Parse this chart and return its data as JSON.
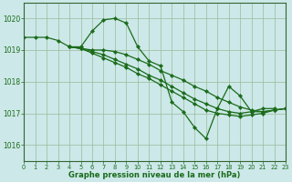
{
  "background_color": "#cce8e8",
  "grid_color": "#99bb99",
  "line_color": "#1a6b1a",
  "marker_color": "#1a6b1a",
  "title": "Graphe pression niveau de la mer (hPa)",
  "xlim": [
    0,
    23
  ],
  "ylim": [
    1015.5,
    1020.5
  ],
  "yticks": [
    1016,
    1017,
    1018,
    1019,
    1020
  ],
  "xticks": [
    0,
    1,
    2,
    3,
    4,
    5,
    6,
    7,
    8,
    9,
    10,
    11,
    12,
    13,
    14,
    15,
    16,
    17,
    18,
    19,
    20,
    21,
    22,
    23
  ],
  "series": [
    {
      "x": [
        0,
        1,
        2,
        3,
        4,
        5,
        6,
        7,
        8,
        9,
        10,
        11,
        12,
        13,
        14,
        15,
        16,
        17,
        18,
        19,
        20,
        21,
        22
      ],
      "y": [
        1019.4,
        1019.4,
        1019.4,
        1019.3,
        1019.1,
        1019.1,
        1019.6,
        1019.95,
        1020.0,
        1019.85,
        1019.1,
        1018.65,
        1018.5,
        1017.35,
        1017.05,
        1016.55,
        1016.2,
        1017.15,
        1017.85,
        1017.55,
        1017.05,
        1017.15,
        1017.15
      ]
    },
    {
      "x": [
        4,
        5,
        6,
        7,
        8,
        9,
        10,
        11,
        12,
        13,
        14,
        15,
        16,
        17,
        18,
        19,
        20,
        21,
        22,
        23
      ],
      "y": [
        1019.1,
        1019.05,
        1019.0,
        1019.0,
        1018.95,
        1018.85,
        1018.7,
        1018.55,
        1018.35,
        1018.2,
        1018.05,
        1017.85,
        1017.7,
        1017.5,
        1017.35,
        1017.2,
        1017.1,
        1017.05,
        1017.1,
        1017.15
      ]
    },
    {
      "x": [
        4,
        5,
        6,
        7,
        8,
        9,
        10,
        11,
        12,
        13,
        14,
        15,
        16,
        17,
        18,
        19,
        20,
        21,
        22,
        23
      ],
      "y": [
        1019.1,
        1019.05,
        1018.95,
        1018.85,
        1018.7,
        1018.55,
        1018.4,
        1018.2,
        1018.05,
        1017.85,
        1017.65,
        1017.45,
        1017.3,
        1017.15,
        1017.05,
        1017.0,
        1017.05,
        1017.05,
        1017.1,
        1017.15
      ]
    },
    {
      "x": [
        4,
        5,
        6,
        7,
        8,
        9,
        10,
        11,
        12,
        13,
        14,
        15,
        16,
        17,
        18,
        19,
        20,
        21,
        22,
        23
      ],
      "y": [
        1019.1,
        1019.05,
        1018.9,
        1018.75,
        1018.6,
        1018.45,
        1018.25,
        1018.1,
        1017.9,
        1017.7,
        1017.5,
        1017.3,
        1017.1,
        1017.0,
        1016.95,
        1016.9,
        1016.95,
        1017.0,
        1017.1,
        1017.15
      ]
    }
  ]
}
